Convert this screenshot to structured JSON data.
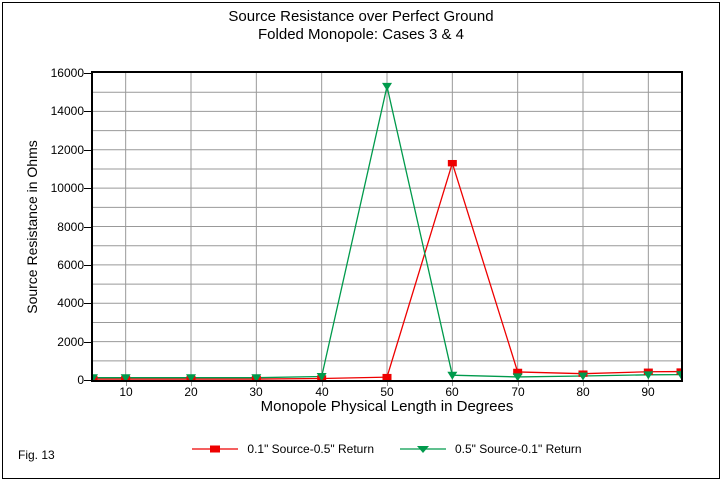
{
  "figure": {
    "fig_label": "Fig. 13"
  },
  "colors": {
    "background": "#ffffff",
    "border": "#000000",
    "axis": "#000000",
    "gridline": "#999999",
    "series_red": "#ee0000",
    "series_green": "#009a4c"
  },
  "chart_data": {
    "type": "line",
    "title": "Source Resistance over Perfect Ground",
    "subtitle": "Folded Monopole: Cases 3 & 4",
    "xlabel": "Monopole Physical Length in Degrees",
    "ylabel": "Source Resistance in Ohms",
    "xlim": [
      5,
      95
    ],
    "ylim": [
      0,
      16000
    ],
    "x_ticks": [
      10,
      20,
      30,
      40,
      50,
      60,
      70,
      80,
      90
    ],
    "y_ticks": [
      0,
      2000,
      4000,
      6000,
      8000,
      10000,
      12000,
      14000,
      16000
    ],
    "y_minor_gridline_step": 1000,
    "grid": true,
    "legend_position": "bottom",
    "x": [
      5,
      10,
      20,
      30,
      40,
      50,
      60,
      70,
      80,
      90,
      95
    ],
    "series": [
      {
        "name": "0.1\" Source-0.5\" Return",
        "color": "#ee0000",
        "marker": "square",
        "values": [
          50,
          50,
          50,
          50,
          80,
          150,
          11300,
          420,
          330,
          430,
          440
        ]
      },
      {
        "name": "0.5\" Source-0.1\" Return",
        "color": "#009a4c",
        "marker": "triangle-down",
        "values": [
          120,
          120,
          120,
          120,
          180,
          15300,
          250,
          160,
          210,
          270,
          280
        ]
      }
    ]
  }
}
